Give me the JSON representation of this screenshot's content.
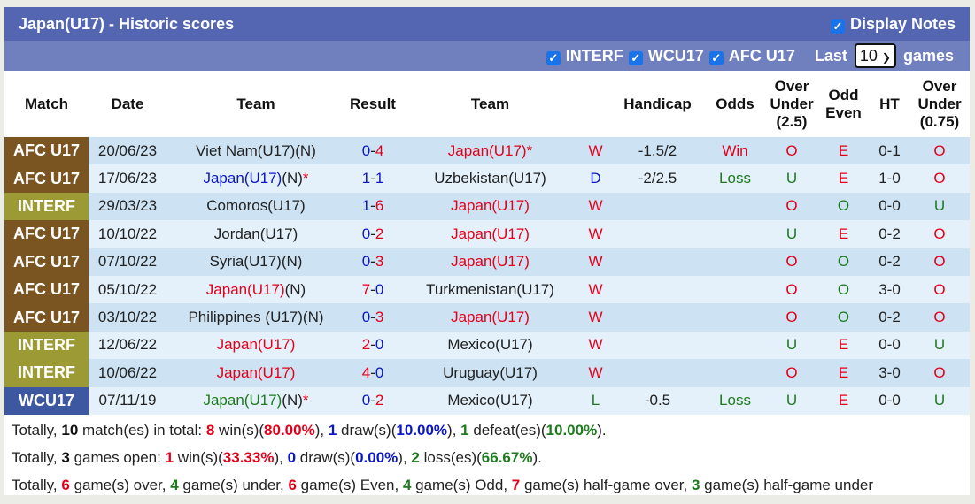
{
  "title": "Japan(U17) - Historic scores",
  "display_notes": "Display Notes",
  "filters": {
    "items": [
      "INTERF",
      "WCU17",
      "AFC U17"
    ],
    "last": "Last",
    "count": "10",
    "games": "games"
  },
  "colors": {
    "red": "#e3001b",
    "blue": "#0b16c6",
    "green": "#1e7a1e",
    "AFC U17": "#7a5522",
    "INTERF": "#9b9a35",
    "WCU17": "#3d57a0"
  },
  "headers": [
    "Match",
    "Date",
    "Team",
    "Result",
    "Team",
    "",
    "Handicap",
    "Odds",
    "Over Under (2.5)",
    "Odd Even",
    "HT",
    "Over Under (0.75)"
  ],
  "rows": [
    {
      "match": "AFC U17",
      "date": "20/06/23",
      "home": {
        "name": "Viet Nam(U17)(N)",
        "suffix": "",
        "star": "",
        "color": "black"
      },
      "s1": "0",
      "s1c": "blue",
      "s2": "4",
      "s2c": "red",
      "away": {
        "name": "Japan(U17)",
        "suffix": "",
        "star": "*",
        "color": "red"
      },
      "res": "W",
      "resc": "red",
      "hcap": "-1.5/2",
      "odds": "Win",
      "oddsc": "red",
      "ou": "O",
      "oe": "E",
      "ht": "0-1",
      "ou2": "O"
    },
    {
      "match": "AFC U17",
      "date": "17/06/23",
      "home": {
        "name": "Japan(U17)",
        "suffix": "(N)",
        "star": "*",
        "color": "blue"
      },
      "s1": "1",
      "s1c": "blue",
      "s2": "1",
      "s2c": "blue",
      "away": {
        "name": "Uzbekistan(U17)",
        "suffix": "",
        "star": "",
        "color": "black"
      },
      "res": "D",
      "resc": "blue",
      "hcap": "-2/2.5",
      "odds": "Loss",
      "oddsc": "green",
      "ou": "U",
      "oe": "E",
      "ht": "1-0",
      "ou2": "O"
    },
    {
      "match": "INTERF",
      "date": "29/03/23",
      "home": {
        "name": "Comoros(U17)",
        "suffix": "",
        "star": "",
        "color": "black"
      },
      "s1": "1",
      "s1c": "blue",
      "s2": "6",
      "s2c": "red",
      "away": {
        "name": "Japan(U17)",
        "suffix": "",
        "star": "",
        "color": "red"
      },
      "res": "W",
      "resc": "red",
      "hcap": "",
      "odds": "",
      "oddsc": "red",
      "ou": "O",
      "oe": "O",
      "ht": "0-0",
      "ou2": "U"
    },
    {
      "match": "AFC U17",
      "date": "10/10/22",
      "home": {
        "name": "Jordan(U17)",
        "suffix": "",
        "star": "",
        "color": "black"
      },
      "s1": "0",
      "s1c": "blue",
      "s2": "2",
      "s2c": "red",
      "away": {
        "name": "Japan(U17)",
        "suffix": "",
        "star": "",
        "color": "red"
      },
      "res": "W",
      "resc": "red",
      "hcap": "",
      "odds": "",
      "oddsc": "red",
      "ou": "U",
      "oe": "E",
      "ht": "0-2",
      "ou2": "O"
    },
    {
      "match": "AFC U17",
      "date": "07/10/22",
      "home": {
        "name": "Syria(U17)(N)",
        "suffix": "",
        "star": "",
        "color": "black"
      },
      "s1": "0",
      "s1c": "blue",
      "s2": "3",
      "s2c": "red",
      "away": {
        "name": "Japan(U17)",
        "suffix": "",
        "star": "",
        "color": "red"
      },
      "res": "W",
      "resc": "red",
      "hcap": "",
      "odds": "",
      "oddsc": "red",
      "ou": "O",
      "oe": "O",
      "ht": "0-2",
      "ou2": "O"
    },
    {
      "match": "AFC U17",
      "date": "05/10/22",
      "home": {
        "name": "Japan(U17)",
        "suffix": "(N)",
        "star": "",
        "color": "red"
      },
      "s1": "7",
      "s1c": "red",
      "s2": "0",
      "s2c": "blue",
      "away": {
        "name": "Turkmenistan(U17)",
        "suffix": "",
        "star": "",
        "color": "black"
      },
      "res": "W",
      "resc": "red",
      "hcap": "",
      "odds": "",
      "oddsc": "red",
      "ou": "O",
      "oe": "O",
      "ht": "3-0",
      "ou2": "O"
    },
    {
      "match": "AFC U17",
      "date": "03/10/22",
      "home": {
        "name": "Philippines (U17)(N)",
        "suffix": "",
        "star": "",
        "color": "black"
      },
      "s1": "0",
      "s1c": "blue",
      "s2": "3",
      "s2c": "red",
      "away": {
        "name": "Japan(U17)",
        "suffix": "",
        "star": "",
        "color": "red"
      },
      "res": "W",
      "resc": "red",
      "hcap": "",
      "odds": "",
      "oddsc": "red",
      "ou": "O",
      "oe": "O",
      "ht": "0-2",
      "ou2": "O"
    },
    {
      "match": "INTERF",
      "date": "12/06/22",
      "home": {
        "name": "Japan(U17)",
        "suffix": "",
        "star": "",
        "color": "red"
      },
      "s1": "2",
      "s1c": "red",
      "s2": "0",
      "s2c": "blue",
      "away": {
        "name": "Mexico(U17)",
        "suffix": "",
        "star": "",
        "color": "black"
      },
      "res": "W",
      "resc": "red",
      "hcap": "",
      "odds": "",
      "oddsc": "red",
      "ou": "U",
      "oe": "E",
      "ht": "0-0",
      "ou2": "U"
    },
    {
      "match": "INTERF",
      "date": "10/06/22",
      "home": {
        "name": "Japan(U17)",
        "suffix": "",
        "star": "",
        "color": "red"
      },
      "s1": "4",
      "s1c": "red",
      "s2": "0",
      "s2c": "blue",
      "away": {
        "name": "Uruguay(U17)",
        "suffix": "",
        "star": "",
        "color": "black"
      },
      "res": "W",
      "resc": "red",
      "hcap": "",
      "odds": "",
      "oddsc": "red",
      "ou": "O",
      "oe": "E",
      "ht": "3-0",
      "ou2": "O"
    },
    {
      "match": "WCU17",
      "date": "07/11/19",
      "home": {
        "name": "Japan(U17)",
        "suffix": "(N)",
        "star": "*",
        "color": "green"
      },
      "s1": "0",
      "s1c": "blue",
      "s2": "2",
      "s2c": "red",
      "away": {
        "name": "Mexico(U17)",
        "suffix": "",
        "star": "",
        "color": "black"
      },
      "res": "L",
      "resc": "green",
      "hcap": "-0.5",
      "odds": "Loss",
      "oddsc": "green",
      "ou": "U",
      "oe": "E",
      "ht": "0-0",
      "ou2": "U"
    }
  ],
  "summary": [
    [
      [
        "Totally, ",
        ""
      ],
      [
        "10",
        "k"
      ],
      [
        " match(es) in total: ",
        ""
      ],
      [
        "8",
        "r"
      ],
      [
        " win(s)(",
        ""
      ],
      [
        "80.00%",
        "r"
      ],
      [
        "), ",
        ""
      ],
      [
        "1",
        "b"
      ],
      [
        " draw(s)(",
        ""
      ],
      [
        "10.00%",
        "b"
      ],
      [
        "), ",
        ""
      ],
      [
        "1",
        "g"
      ],
      [
        " defeat(es)(",
        ""
      ],
      [
        "10.00%",
        "g"
      ],
      [
        ").",
        ""
      ]
    ],
    [
      [
        "Totally, ",
        ""
      ],
      [
        "3",
        "k"
      ],
      [
        " games open: ",
        ""
      ],
      [
        "1",
        "r"
      ],
      [
        " win(s)(",
        ""
      ],
      [
        "33.33%",
        "r"
      ],
      [
        "), ",
        ""
      ],
      [
        "0",
        "b"
      ],
      [
        " draw(s)(",
        ""
      ],
      [
        "0.00%",
        "b"
      ],
      [
        "), ",
        ""
      ],
      [
        "2",
        "g"
      ],
      [
        " loss(es)(",
        ""
      ],
      [
        "66.67%",
        "g"
      ],
      [
        ").",
        ""
      ]
    ],
    [
      [
        "Totally, ",
        ""
      ],
      [
        "6",
        "r"
      ],
      [
        " game(s) over, ",
        ""
      ],
      [
        "4",
        "g"
      ],
      [
        " game(s) under, ",
        ""
      ],
      [
        "6",
        "r"
      ],
      [
        " game(s) Even, ",
        ""
      ],
      [
        "4",
        "g"
      ],
      [
        " game(s) Odd, ",
        ""
      ],
      [
        "7",
        "r"
      ],
      [
        " game(s) half-game over, ",
        ""
      ],
      [
        "3",
        "g"
      ],
      [
        " game(s) half-game under",
        ""
      ]
    ]
  ]
}
